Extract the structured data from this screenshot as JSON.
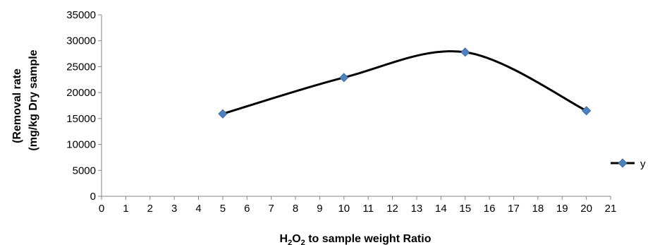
{
  "chart_data": {
    "type": "line",
    "title": "",
    "xlabel": {
      "prefix": "H",
      "sub1": "2",
      "mid": "O",
      "sub2": "2",
      "suffix": " to sample weight Ratio"
    },
    "ylabel": [
      "(Removal rate",
      "(mg/kg Dry sample"
    ],
    "xlim": [
      0,
      21
    ],
    "ylim": [
      0,
      35000
    ],
    "xticks": [
      0,
      1,
      2,
      3,
      4,
      5,
      6,
      7,
      8,
      9,
      10,
      11,
      12,
      13,
      14,
      15,
      16,
      17,
      18,
      19,
      20,
      21
    ],
    "yticks": [
      0,
      5000,
      10000,
      15000,
      20000,
      25000,
      30000,
      35000
    ],
    "smooth": true,
    "grid": false,
    "legend_position": "right",
    "series": [
      {
        "name": "y",
        "line_color": "#000000",
        "marker": "diamond",
        "marker_color": "#4F81BD",
        "x": [
          5,
          10,
          15,
          20
        ],
        "y": [
          15900,
          22900,
          27800,
          16500
        ]
      }
    ]
  }
}
